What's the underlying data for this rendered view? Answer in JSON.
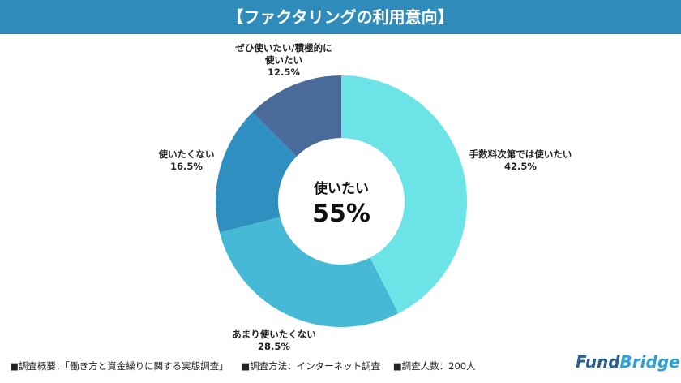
{
  "header": {
    "title": "【ファクタリングの利用意向】"
  },
  "chart_data": {
    "type": "pie",
    "donut": true,
    "categories": [
      "手数料次第では使いたい",
      "あまり使いたくない",
      "使いたくない",
      "ぜひ使いたい/積極的に使いたい"
    ],
    "values": [
      42.5,
      28.5,
      16.5,
      12.5
    ],
    "labels": [
      "42.5%",
      "28.5%",
      "16.5%",
      "12.5%"
    ],
    "colors": [
      "#6ce3e6",
      "#45b9d6",
      "#2f8fc0",
      "#4a6a9a"
    ],
    "center_label": "使いたい",
    "center_value": "55%"
  },
  "footer": {
    "items": [
      "■調査概要：「働き方と資金繰りに関する実態調査」",
      "■調査方法：インターネット調査",
      "■調査人数：200人"
    ],
    "logo": {
      "part1": "Fund",
      "part2": "Bridge"
    }
  }
}
